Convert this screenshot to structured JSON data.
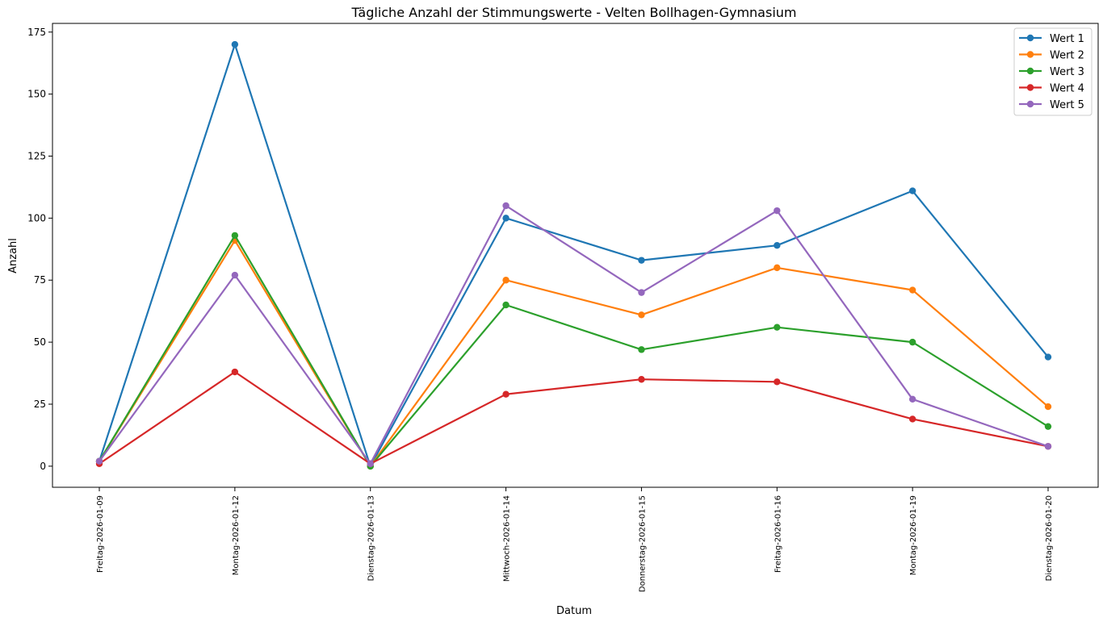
{
  "chart_data": {
    "type": "line",
    "title": "Tägliche Anzahl der Stimmungswerte - Velten Bollhagen-Gymnasium",
    "xlabel": "Datum",
    "ylabel": "Anzahl",
    "categories": [
      "Freitag-2026-01-09",
      "Montag-2026-01-12",
      "Dienstag-2026-01-13",
      "Mittwoch-2026-01-14",
      "Donnerstag-2026-01-15",
      "Freitag-2026-01-16",
      "Montag-2026-01-19",
      "Dienstag-2026-01-20"
    ],
    "yticks": [
      0,
      25,
      50,
      75,
      100,
      125,
      150,
      175
    ],
    "ylim": [
      -8.5,
      178.5
    ],
    "legend_position": "top-right",
    "grid": false,
    "series": [
      {
        "name": "Wert 1",
        "color": "#1f77b4",
        "values": [
          2,
          170,
          0,
          100,
          83,
          89,
          111,
          44
        ]
      },
      {
        "name": "Wert 2",
        "color": "#ff7f0e",
        "values": [
          2,
          91,
          0,
          75,
          61,
          80,
          71,
          24
        ]
      },
      {
        "name": "Wert 3",
        "color": "#2ca02c",
        "values": [
          2,
          93,
          0,
          65,
          47,
          56,
          50,
          16
        ]
      },
      {
        "name": "Wert 4",
        "color": "#d62728",
        "values": [
          1,
          38,
          1,
          29,
          35,
          34,
          19,
          8
        ]
      },
      {
        "name": "Wert 5",
        "color": "#9467bd",
        "values": [
          2,
          77,
          1,
          105,
          70,
          103,
          27,
          8
        ]
      }
    ]
  }
}
